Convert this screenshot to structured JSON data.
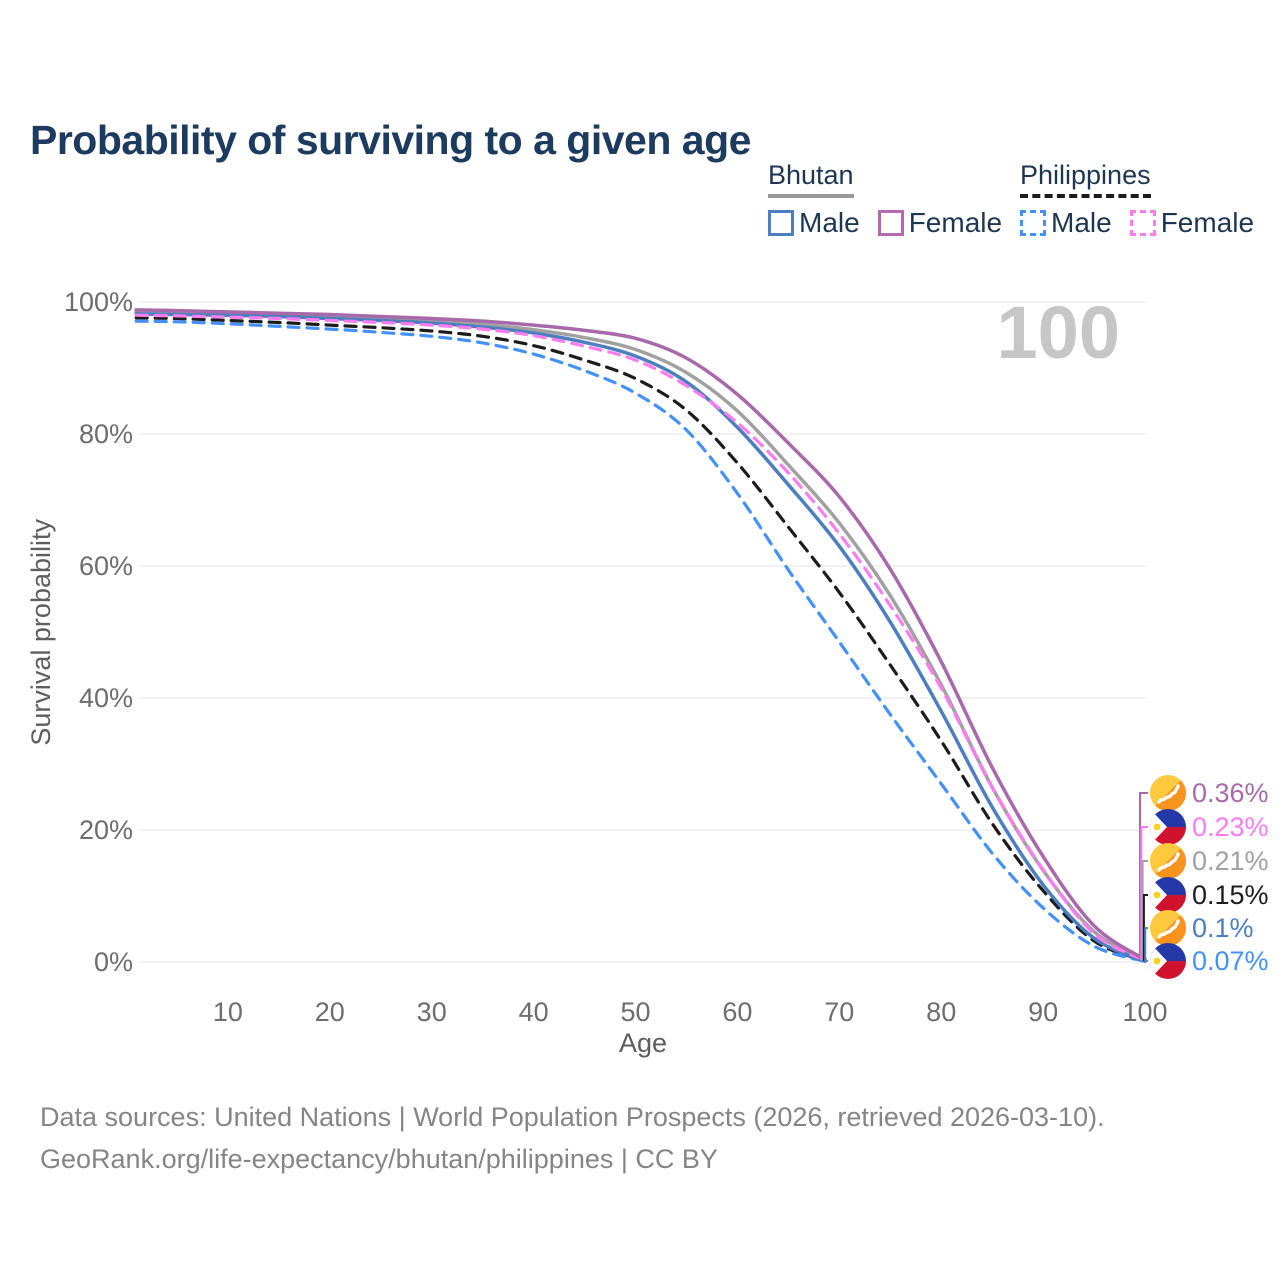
{
  "header": {
    "title": "Probability of surviving to a given age"
  },
  "legend": {
    "groups": [
      {
        "name": "Bhutan",
        "line_style": "solid",
        "underline_color": "#9a9a9a",
        "items": [
          {
            "label": "Male",
            "color": "#4c7ec0"
          },
          {
            "label": "Female",
            "color": "#b36ab0"
          }
        ]
      },
      {
        "name": "Philippines",
        "line_style": "dashed",
        "underline_color": "#1c1c1c",
        "items": [
          {
            "label": "Male",
            "color": "#4591fc"
          },
          {
            "label": "Female",
            "color": "#ff7cf0"
          }
        ]
      }
    ]
  },
  "chart_data": {
    "type": "line",
    "title": "Probability of surviving to a given age",
    "xlabel": "Age",
    "ylabel": "Survival probability",
    "watermark": "100",
    "xlim": [
      1,
      100
    ],
    "ylim": [
      0,
      100
    ],
    "grid": true,
    "legend_position": "top-right",
    "x_ticks": [
      10,
      20,
      30,
      40,
      50,
      60,
      70,
      80,
      90,
      100
    ],
    "y_ticks": [
      0,
      20,
      40,
      60,
      80,
      100
    ],
    "y_tick_suffix": "%",
    "x": [
      1,
      5,
      10,
      15,
      20,
      25,
      30,
      35,
      40,
      45,
      50,
      55,
      60,
      65,
      70,
      75,
      80,
      85,
      90,
      95,
      100
    ],
    "series": [
      {
        "name": "Bhutan Female",
        "country": "Bhutan",
        "sex": "female",
        "color": "#a869ab",
        "dash": "solid",
        "end_label": "0.36%",
        "values": [
          98.8,
          98.7,
          98.5,
          98.3,
          98.1,
          97.8,
          97.5,
          97.1,
          96.5,
          95.7,
          94.5,
          91.5,
          86.0,
          78.6,
          70.5,
          59.5,
          45.5,
          29.5,
          16.0,
          5.5,
          0.36
        ]
      },
      {
        "name": "Philippines Female",
        "country": "Philippines",
        "sex": "female",
        "color": "#ff7cf0",
        "dash": "dashed",
        "end_label": "0.23%",
        "values": [
          98.0,
          97.9,
          97.7,
          97.5,
          97.2,
          96.9,
          96.5,
          95.9,
          94.9,
          93.3,
          91.2,
          87.3,
          81.7,
          74.1,
          64.9,
          54.0,
          41.5,
          26.5,
          14.0,
          4.3,
          0.23
        ]
      },
      {
        "name": "Bhutan Both Sexes",
        "country": "Bhutan",
        "sex": "all",
        "color": "#a1a1a1",
        "dash": "solid",
        "end_label": "0.21%",
        "values": [
          98.5,
          98.4,
          98.2,
          98.0,
          97.8,
          97.5,
          97.1,
          96.6,
          95.8,
          94.6,
          92.8,
          89.3,
          83.5,
          75.3,
          66.5,
          55.5,
          42.0,
          26.5,
          13.9,
          4.6,
          0.21
        ]
      },
      {
        "name": "Philippines Both Sexes",
        "country": "Philippines",
        "sex": "all",
        "color": "#1c1c1c",
        "dash": "dashed",
        "end_label": "0.15%",
        "values": [
          97.6,
          97.5,
          97.2,
          96.9,
          96.5,
          96.1,
          95.6,
          94.8,
          93.4,
          91.2,
          88.4,
          83.6,
          75.6,
          65.9,
          56.0,
          45.0,
          33.5,
          21.0,
          10.8,
          3.2,
          0.15
        ]
      },
      {
        "name": "Bhutan Male",
        "country": "Bhutan",
        "sex": "male",
        "color": "#4c7ec0",
        "dash": "solid",
        "end_label": "0.1%",
        "values": [
          98.2,
          98.1,
          98.0,
          97.8,
          97.5,
          97.2,
          96.8,
          96.2,
          95.3,
          93.9,
          91.8,
          87.9,
          81.0,
          72.3,
          63.0,
          51.5,
          38.0,
          23.5,
          11.7,
          3.6,
          0.1
        ]
      },
      {
        "name": "Philippines Male",
        "country": "Philippines",
        "sex": "male",
        "color": "#4591fc",
        "dash": "dashed",
        "end_label": "0.07%",
        "values": [
          97.1,
          97.0,
          96.7,
          96.3,
          95.9,
          95.4,
          94.8,
          93.8,
          92.1,
          89.6,
          86.2,
          80.6,
          71.0,
          59.4,
          48.5,
          37.5,
          27.0,
          16.5,
          8.2,
          2.4,
          0.07
        ]
      }
    ]
  },
  "colors": {
    "title_text": "#1d3a5f",
    "legend_text": "#1e3650",
    "tick_text": "#6d6d6d",
    "axis_title_text": "#5e5e5e",
    "grid_line": "#e4e4e4",
    "watermark_text": "#c6c6c6",
    "footer_text": "#858585"
  },
  "footer": {
    "line1": "Data sources: United Nations | World Population Prospects (2026, retrieved 2026-03-10).",
    "line2": "GeoRank.org/life-expectancy/bhutan/philippines | CC BY"
  }
}
